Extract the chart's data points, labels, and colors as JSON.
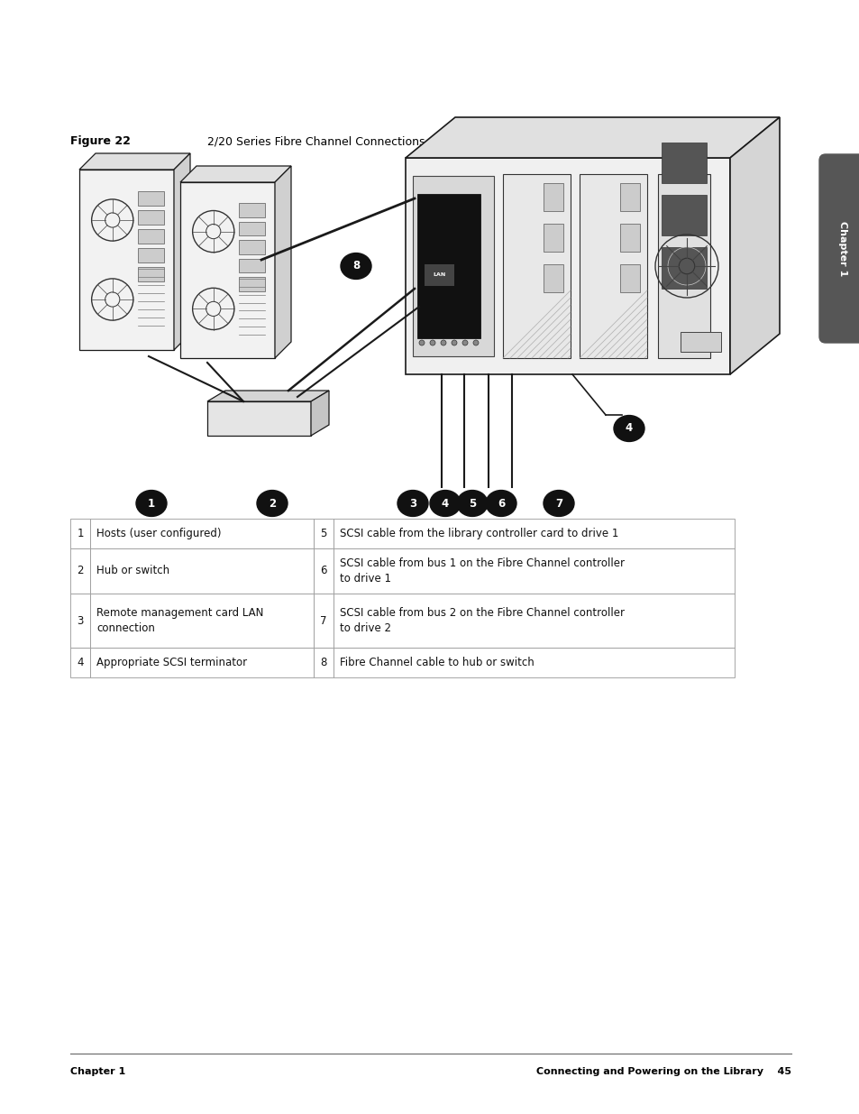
{
  "page_bg": "#ffffff",
  "figure_label": "Figure 22",
  "figure_title": "2/20 Series Fibre Channel Connections",
  "chapter_tab_text": "Chapter 1",
  "chapter_tab_bg": "#565656",
  "chapter_tab_text_color": "#ffffff",
  "footer_left": "Chapter 1",
  "footer_right": "Connecting and Powering on the Library    45",
  "table_rows": [
    [
      "1",
      "Hosts (user configured)",
      "5",
      "SCSI cable from the library controller card to drive 1"
    ],
    [
      "2",
      "Hub or switch",
      "6",
      "SCSI cable from bus 1 on the Fibre Channel controller\nto drive 1"
    ],
    [
      "3",
      "Remote management card LAN\nconnection",
      "7",
      "SCSI cable from bus 2 on the Fibre Channel controller\nto drive 2"
    ],
    [
      "4",
      "Appropriate SCSI terminator",
      "8",
      "Fibre Channel cable to hub or switch"
    ]
  ],
  "font_size_figure_label": 9,
  "font_size_figure_title": 9,
  "font_size_table": 8.5,
  "font_size_footer": 8,
  "font_size_chapter_tab": 8
}
